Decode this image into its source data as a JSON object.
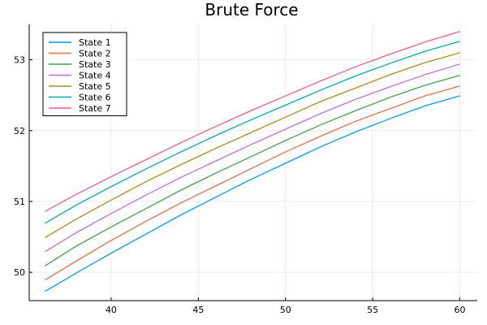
{
  "chart_data": {
    "type": "line",
    "title": "Brute Force",
    "xlabel": "",
    "ylabel": "",
    "xlim": [
      35.3,
      61.0
    ],
    "ylim": [
      49.6,
      53.5
    ],
    "xticks": [
      40,
      45,
      50,
      55,
      60
    ],
    "yticks": [
      50,
      51,
      52,
      53
    ],
    "grid": true,
    "legend_position": "top-left",
    "series": [
      {
        "name": "State 1",
        "color": "#009AFA",
        "x": [
          36.2,
          38,
          40,
          42,
          44,
          46,
          48,
          50,
          52,
          54,
          56,
          58,
          60
        ],
        "y": [
          49.73,
          49.99,
          50.27,
          50.54,
          50.81,
          51.06,
          51.31,
          51.54,
          51.77,
          51.98,
          52.17,
          52.35,
          52.49
        ]
      },
      {
        "name": "State 2",
        "color": "#E36F47",
        "x": [
          36.2,
          38,
          40,
          42,
          44,
          46,
          48,
          50,
          52,
          54,
          56,
          58,
          60
        ],
        "y": [
          49.89,
          50.16,
          50.45,
          50.72,
          50.98,
          51.22,
          51.46,
          51.7,
          51.92,
          52.13,
          52.31,
          52.49,
          52.63
        ]
      },
      {
        "name": "State 3",
        "color": "#3EA44E",
        "x": [
          36.2,
          38,
          40,
          42,
          44,
          46,
          48,
          50,
          52,
          54,
          56,
          58,
          60
        ],
        "y": [
          50.09,
          50.37,
          50.64,
          50.9,
          51.16,
          51.4,
          51.63,
          51.86,
          52.08,
          52.28,
          52.47,
          52.64,
          52.78
        ]
      },
      {
        "name": "State 4",
        "color": "#C270D2",
        "x": [
          36.2,
          38,
          40,
          42,
          44,
          46,
          48,
          50,
          52,
          54,
          56,
          58,
          60
        ],
        "y": [
          50.29,
          50.56,
          50.83,
          51.09,
          51.34,
          51.57,
          51.8,
          52.02,
          52.24,
          52.44,
          52.62,
          52.79,
          52.94
        ]
      },
      {
        "name": "State 5",
        "color": "#AC8D18",
        "x": [
          36.2,
          38,
          40,
          42,
          44,
          46,
          48,
          50,
          52,
          54,
          56,
          58,
          60
        ],
        "y": [
          50.49,
          50.75,
          51.02,
          51.28,
          51.52,
          51.75,
          51.97,
          52.19,
          52.41,
          52.6,
          52.79,
          52.96,
          53.1
        ]
      },
      {
        "name": "State 6",
        "color": "#00A9AD",
        "x": [
          36.2,
          38,
          40,
          42,
          44,
          46,
          48,
          50,
          52,
          54,
          56,
          58,
          60
        ],
        "y": [
          50.69,
          50.95,
          51.21,
          51.46,
          51.7,
          51.93,
          52.15,
          52.36,
          52.57,
          52.77,
          52.95,
          53.12,
          53.26
        ]
      },
      {
        "name": "State 7",
        "color": "#ED5D92",
        "x": [
          36.2,
          38,
          40,
          42,
          44,
          46,
          48,
          50,
          52,
          54,
          56,
          58,
          60
        ],
        "y": [
          50.86,
          51.1,
          51.35,
          51.59,
          51.83,
          52.06,
          52.28,
          52.49,
          52.7,
          52.9,
          53.08,
          53.25,
          53.4
        ]
      }
    ]
  }
}
